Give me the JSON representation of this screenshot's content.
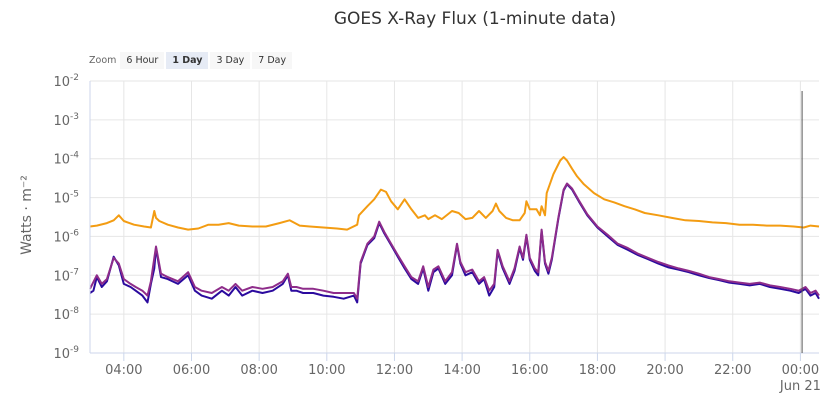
{
  "chart_data": {
    "type": "line",
    "title": "GOES X-Ray Flux (1-minute data)",
    "ylabel": "Watts · m⁻²",
    "y_scale": "log",
    "ylim": [
      1e-09,
      0.01
    ],
    "y_ticks": [
      {
        "value": 0.01,
        "base": "10",
        "exp": "-2"
      },
      {
        "value": 0.001,
        "base": "10",
        "exp": "-3"
      },
      {
        "value": 0.0001,
        "base": "10",
        "exp": "-4"
      },
      {
        "value": 1e-05,
        "base": "10",
        "exp": "-5"
      },
      {
        "value": 1e-06,
        "base": "10",
        "exp": "-6"
      },
      {
        "value": 1e-07,
        "base": "10",
        "exp": "-7"
      },
      {
        "value": 1e-08,
        "base": "10",
        "exp": "-8"
      },
      {
        "value": 1e-09,
        "base": "10",
        "exp": "-9"
      }
    ],
    "x_unit": "hour",
    "xlim": [
      3.0,
      24.55
    ],
    "x_ticks": [
      {
        "value": 4,
        "label": "04:00"
      },
      {
        "value": 6,
        "label": "06:00"
      },
      {
        "value": 8,
        "label": "08:00"
      },
      {
        "value": 10,
        "label": "10:00"
      },
      {
        "value": 12,
        "label": "12:00"
      },
      {
        "value": 14,
        "label": "14:00"
      },
      {
        "value": 16,
        "label": "16:00"
      },
      {
        "value": 18,
        "label": "18:00"
      },
      {
        "value": 20,
        "label": "20:00"
      },
      {
        "value": 22,
        "label": "22:00"
      },
      {
        "value": 24,
        "label": "00:00",
        "sublabel": "Jun 21"
      }
    ],
    "grid": true,
    "marker_line_x": 24.05,
    "series": [
      {
        "color": "#f39c12",
        "x": [
          3.0,
          3.2,
          3.5,
          3.7,
          3.85,
          4.0,
          4.3,
          4.6,
          4.8,
          4.9,
          4.95,
          5.05,
          5.3,
          5.6,
          5.9,
          6.2,
          6.5,
          6.8,
          7.1,
          7.4,
          7.8,
          8.2,
          8.6,
          8.9,
          9.2,
          9.5,
          9.9,
          10.3,
          10.6,
          10.9,
          10.95,
          11.2,
          11.4,
          11.6,
          11.75,
          11.9,
          12.1,
          12.3,
          12.5,
          12.7,
          12.9,
          13.0,
          13.2,
          13.4,
          13.7,
          13.9,
          14.1,
          14.3,
          14.5,
          14.7,
          14.9,
          15.0,
          15.1,
          15.3,
          15.5,
          15.7,
          15.85,
          15.9,
          16.0,
          16.2,
          16.3,
          16.35,
          16.45,
          16.5,
          16.7,
          16.9,
          17.0,
          17.1,
          17.25,
          17.4,
          17.6,
          17.9,
          18.2,
          18.5,
          18.8,
          19.1,
          19.4,
          19.8,
          20.2,
          20.6,
          21.0,
          21.4,
          21.8,
          22.2,
          22.6,
          23.0,
          23.4,
          23.8,
          24.1,
          24.3,
          24.55
        ],
        "y": [
          1.8e-06,
          1.9e-06,
          2.2e-06,
          2.6e-06,
          3.5e-06,
          2.5e-06,
          2e-06,
          1.8e-06,
          1.7e-06,
          4.5e-06,
          3e-06,
          2.5e-06,
          2e-06,
          1.7e-06,
          1.5e-06,
          1.6e-06,
          2e-06,
          2e-06,
          2.2e-06,
          1.9e-06,
          1.8e-06,
          1.8e-06,
          2.2e-06,
          2.6e-06,
          1.9e-06,
          1.8e-06,
          1.7e-06,
          1.6e-06,
          1.5e-06,
          2e-06,
          3.5e-06,
          6e-06,
          9e-06,
          1.6e-05,
          1.4e-05,
          8e-06,
          5e-06,
          9e-06,
          5e-06,
          3e-06,
          3.5e-06,
          2.8e-06,
          3.5e-06,
          2.8e-06,
          4.5e-06,
          4e-06,
          2.8e-06,
          3e-06,
          4.5e-06,
          3e-06,
          4.5e-06,
          7e-06,
          4.5e-06,
          3e-06,
          2.6e-06,
          2.6e-06,
          4e-06,
          8e-06,
          5e-06,
          5e-06,
          3.5e-06,
          6e-06,
          3.5e-06,
          1.3e-05,
          4e-05,
          9e-05,
          0.00011,
          9e-05,
          5.5e-05,
          3.5e-05,
          2.2e-05,
          1.3e-05,
          9e-06,
          7.5e-06,
          6e-06,
          5e-06,
          4e-06,
          3.5e-06,
          3e-06,
          2.6e-06,
          2.5e-06,
          2.3e-06,
          2.2e-06,
          2e-06,
          2e-06,
          1.9e-06,
          1.9e-06,
          1.8e-06,
          1.7e-06,
          1.9e-06,
          1.8e-06
        ]
      },
      {
        "color": "#2b0a9e",
        "x": [
          3.0,
          3.1,
          3.2,
          3.35,
          3.5,
          3.7,
          3.85,
          4.0,
          4.2,
          4.35,
          4.55,
          4.7,
          4.8,
          4.9,
          4.95,
          5.1,
          5.3,
          5.6,
          5.9,
          6.1,
          6.3,
          6.6,
          6.9,
          7.1,
          7.3,
          7.5,
          7.8,
          8.1,
          8.4,
          8.7,
          8.85,
          8.95,
          9.1,
          9.3,
          9.6,
          9.9,
          10.2,
          10.5,
          10.8,
          10.9,
          11.0,
          11.2,
          11.4,
          11.55,
          11.7,
          11.9,
          12.1,
          12.3,
          12.5,
          12.7,
          12.85,
          13.0,
          13.15,
          13.3,
          13.5,
          13.7,
          13.85,
          13.95,
          14.1,
          14.3,
          14.5,
          14.65,
          14.8,
          14.95,
          15.05,
          15.2,
          15.4,
          15.55,
          15.7,
          15.8,
          15.9,
          16.0,
          16.15,
          16.25,
          16.35,
          16.45,
          16.55,
          16.65,
          16.85,
          17.0,
          17.1,
          17.25,
          17.45,
          17.7,
          18.0,
          18.3,
          18.6,
          18.9,
          19.2,
          19.5,
          19.8,
          20.1,
          20.4,
          20.7,
          21.0,
          21.3,
          21.6,
          21.9,
          22.2,
          22.5,
          22.8,
          23.1,
          23.4,
          23.7,
          23.95,
          24.15,
          24.3,
          24.45,
          24.55
        ],
        "y": [
          3.5e-08,
          4e-08,
          9e-08,
          5e-08,
          7e-08,
          3e-07,
          1.8e-07,
          6e-08,
          5e-08,
          4e-08,
          3e-08,
          2e-08,
          6e-08,
          1.5e-07,
          5e-07,
          9e-08,
          8e-08,
          6e-08,
          1e-07,
          4e-08,
          3e-08,
          2.5e-08,
          4e-08,
          3e-08,
          5e-08,
          3e-08,
          4e-08,
          3.5e-08,
          4e-08,
          6e-08,
          1e-07,
          4e-08,
          4e-08,
          3.5e-08,
          3.5e-08,
          3e-08,
          2.8e-08,
          2.5e-08,
          3e-08,
          2e-08,
          2e-07,
          6e-07,
          9e-07,
          2.2e-06,
          1.2e-06,
          6e-07,
          3e-07,
          1.5e-07,
          8e-08,
          6e-08,
          1.5e-07,
          4e-08,
          1.2e-07,
          1.5e-07,
          6e-08,
          1e-07,
          6e-07,
          2e-07,
          1e-07,
          1.2e-07,
          6e-08,
          8e-08,
          3e-08,
          5e-08,
          4e-07,
          1.5e-07,
          6e-08,
          1.3e-07,
          5e-07,
          2.5e-07,
          1e-06,
          2.5e-07,
          1.3e-07,
          1e-07,
          1.4e-06,
          2e-07,
          1.1e-07,
          2.5e-07,
          3e-06,
          1.5e-05,
          2.2e-05,
          1.6e-05,
          8e-06,
          3.5e-06,
          1.7e-06,
          1e-06,
          6e-07,
          4.5e-07,
          3.3e-07,
          2.6e-07,
          2e-07,
          1.6e-07,
          1.4e-07,
          1.2e-07,
          1e-07,
          8.5e-08,
          7.5e-08,
          6.5e-08,
          6e-08,
          5.5e-08,
          6e-08,
          5e-08,
          4.5e-08,
          4e-08,
          3.5e-08,
          4.5e-08,
          3e-08,
          3.5e-08,
          2.5e-08
        ]
      },
      {
        "color": "#8e2c8a",
        "x": [
          3.0,
          3.2,
          3.35,
          3.5,
          3.7,
          3.85,
          4.0,
          4.2,
          4.35,
          4.55,
          4.7,
          4.8,
          4.95,
          5.1,
          5.3,
          5.6,
          5.9,
          6.1,
          6.3,
          6.6,
          6.9,
          7.1,
          7.3,
          7.5,
          7.8,
          8.1,
          8.4,
          8.7,
          8.85,
          8.95,
          9.1,
          9.3,
          9.6,
          9.9,
          10.2,
          10.5,
          10.8,
          10.9,
          11.0,
          11.2,
          11.4,
          11.55,
          11.7,
          11.9,
          12.1,
          12.3,
          12.5,
          12.7,
          12.85,
          13.0,
          13.15,
          13.3,
          13.5,
          13.7,
          13.85,
          13.95,
          14.1,
          14.3,
          14.5,
          14.65,
          14.8,
          14.95,
          15.05,
          15.2,
          15.4,
          15.55,
          15.7,
          15.8,
          15.9,
          16.0,
          16.15,
          16.25,
          16.35,
          16.45,
          16.55,
          16.65,
          16.85,
          17.0,
          17.1,
          17.25,
          17.45,
          17.7,
          18.0,
          18.3,
          18.6,
          18.9,
          19.2,
          19.5,
          19.8,
          20.1,
          20.4,
          20.7,
          21.0,
          21.3,
          21.6,
          21.9,
          22.2,
          22.5,
          22.8,
          23.1,
          23.4,
          23.7,
          23.95,
          24.15,
          24.3,
          24.45,
          24.55
        ],
        "y": [
          4.5e-08,
          1e-07,
          6e-08,
          8e-08,
          2.8e-07,
          2e-07,
          8e-08,
          6e-08,
          5e-08,
          4e-08,
          3e-08,
          7e-08,
          5.5e-07,
          1.1e-07,
          9e-08,
          7e-08,
          1.2e-07,
          5e-08,
          4e-08,
          3.5e-08,
          5e-08,
          4e-08,
          6e-08,
          4e-08,
          5e-08,
          4.5e-08,
          5e-08,
          7e-08,
          1.1e-07,
          5e-08,
          5e-08,
          4.5e-08,
          4.5e-08,
          4e-08,
          3.5e-08,
          3.5e-08,
          3.5e-08,
          2.5e-08,
          2.2e-07,
          6.5e-07,
          1e-06,
          2.4e-06,
          1.3e-06,
          6.5e-07,
          3.3e-07,
          1.7e-07,
          9e-08,
          7e-08,
          1.7e-07,
          5e-08,
          1.4e-07,
          1.7e-07,
          7e-08,
          1.2e-07,
          6.5e-07,
          2.2e-07,
          1.2e-07,
          1.4e-07,
          7e-08,
          9e-08,
          4e-08,
          6e-08,
          4.5e-07,
          1.7e-07,
          7e-08,
          1.5e-07,
          5.5e-07,
          2.8e-07,
          1.1e-06,
          2.8e-07,
          1.5e-07,
          1.2e-07,
          1.5e-06,
          2.2e-07,
          1.3e-07,
          2.8e-07,
          3.2e-06,
          1.6e-05,
          2.3e-05,
          1.7e-05,
          8.5e-06,
          3.7e-06,
          1.8e-06,
          1.1e-06,
          6.5e-07,
          5e-07,
          3.6e-07,
          2.8e-07,
          2.2e-07,
          1.8e-07,
          1.5e-07,
          1.3e-07,
          1.1e-07,
          9e-08,
          8e-08,
          7e-08,
          6.5e-08,
          6e-08,
          6.5e-08,
          5.5e-08,
          5e-08,
          4.5e-08,
          4e-08,
          5e-08,
          3.5e-08,
          4e-08,
          3e-08
        ]
      }
    ]
  },
  "zoom": {
    "label": "Zoom",
    "buttons": [
      {
        "label": "6 Hour",
        "selected": false
      },
      {
        "label": "1 Day",
        "selected": true
      },
      {
        "label": "3 Day",
        "selected": false
      },
      {
        "label": "7 Day",
        "selected": false
      }
    ]
  }
}
